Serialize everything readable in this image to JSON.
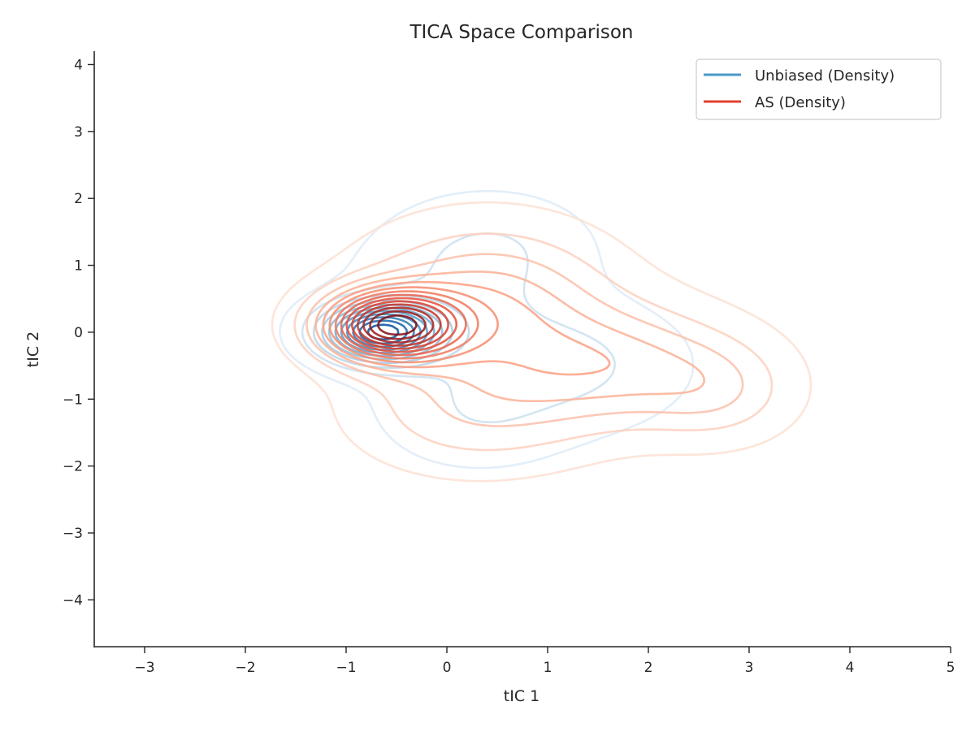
{
  "chart_data": {
    "type": "contour",
    "title": "TICA Space Comparison",
    "xlabel": "tIC 1",
    "ylabel": "tIC 2",
    "xlim": [
      -3.5,
      5.0
    ],
    "ylim": [
      -4.7,
      4.2
    ],
    "xticks": [
      -3,
      -2,
      -1,
      0,
      1,
      2,
      3,
      4,
      5
    ],
    "yticks": [
      -4,
      -3,
      -2,
      -1,
      0,
      1,
      2,
      3,
      4
    ],
    "xtick_labels": [
      "−3",
      "−2",
      "−1",
      "0",
      "1",
      "2",
      "3",
      "4",
      "5"
    ],
    "ytick_labels": [
      "−4",
      "−3",
      "−2",
      "−1",
      "0",
      "1",
      "2",
      "3",
      "4"
    ],
    "grid": false,
    "legend_position": "top-right",
    "series": [
      {
        "name": "Unbiased (Density)",
        "legend_color": "#4a98c9",
        "colormap": [
          "#deebf7",
          "#9ecae1",
          "#4292c6",
          "#08519c"
        ],
        "mode": {
          "x": -0.65,
          "y": 0.0
        },
        "outer_contour_extent": {
          "x": [
            -2.5,
            2.9
          ],
          "y": [
            -2.9,
            2.3
          ]
        },
        "levels": 11
      },
      {
        "name": "AS (Density)",
        "legend_color": "#e0412f",
        "colormap": [
          "#fde0d2",
          "#fb9a7a",
          "#e0412f",
          "#7f0a12"
        ],
        "mode": {
          "x": -0.5,
          "y": 0.0
        },
        "outer_contour_extent": {
          "x": [
            -2.5,
            3.65
          ],
          "y": [
            -3.2,
            2.7
          ]
        },
        "levels": 14
      }
    ]
  }
}
